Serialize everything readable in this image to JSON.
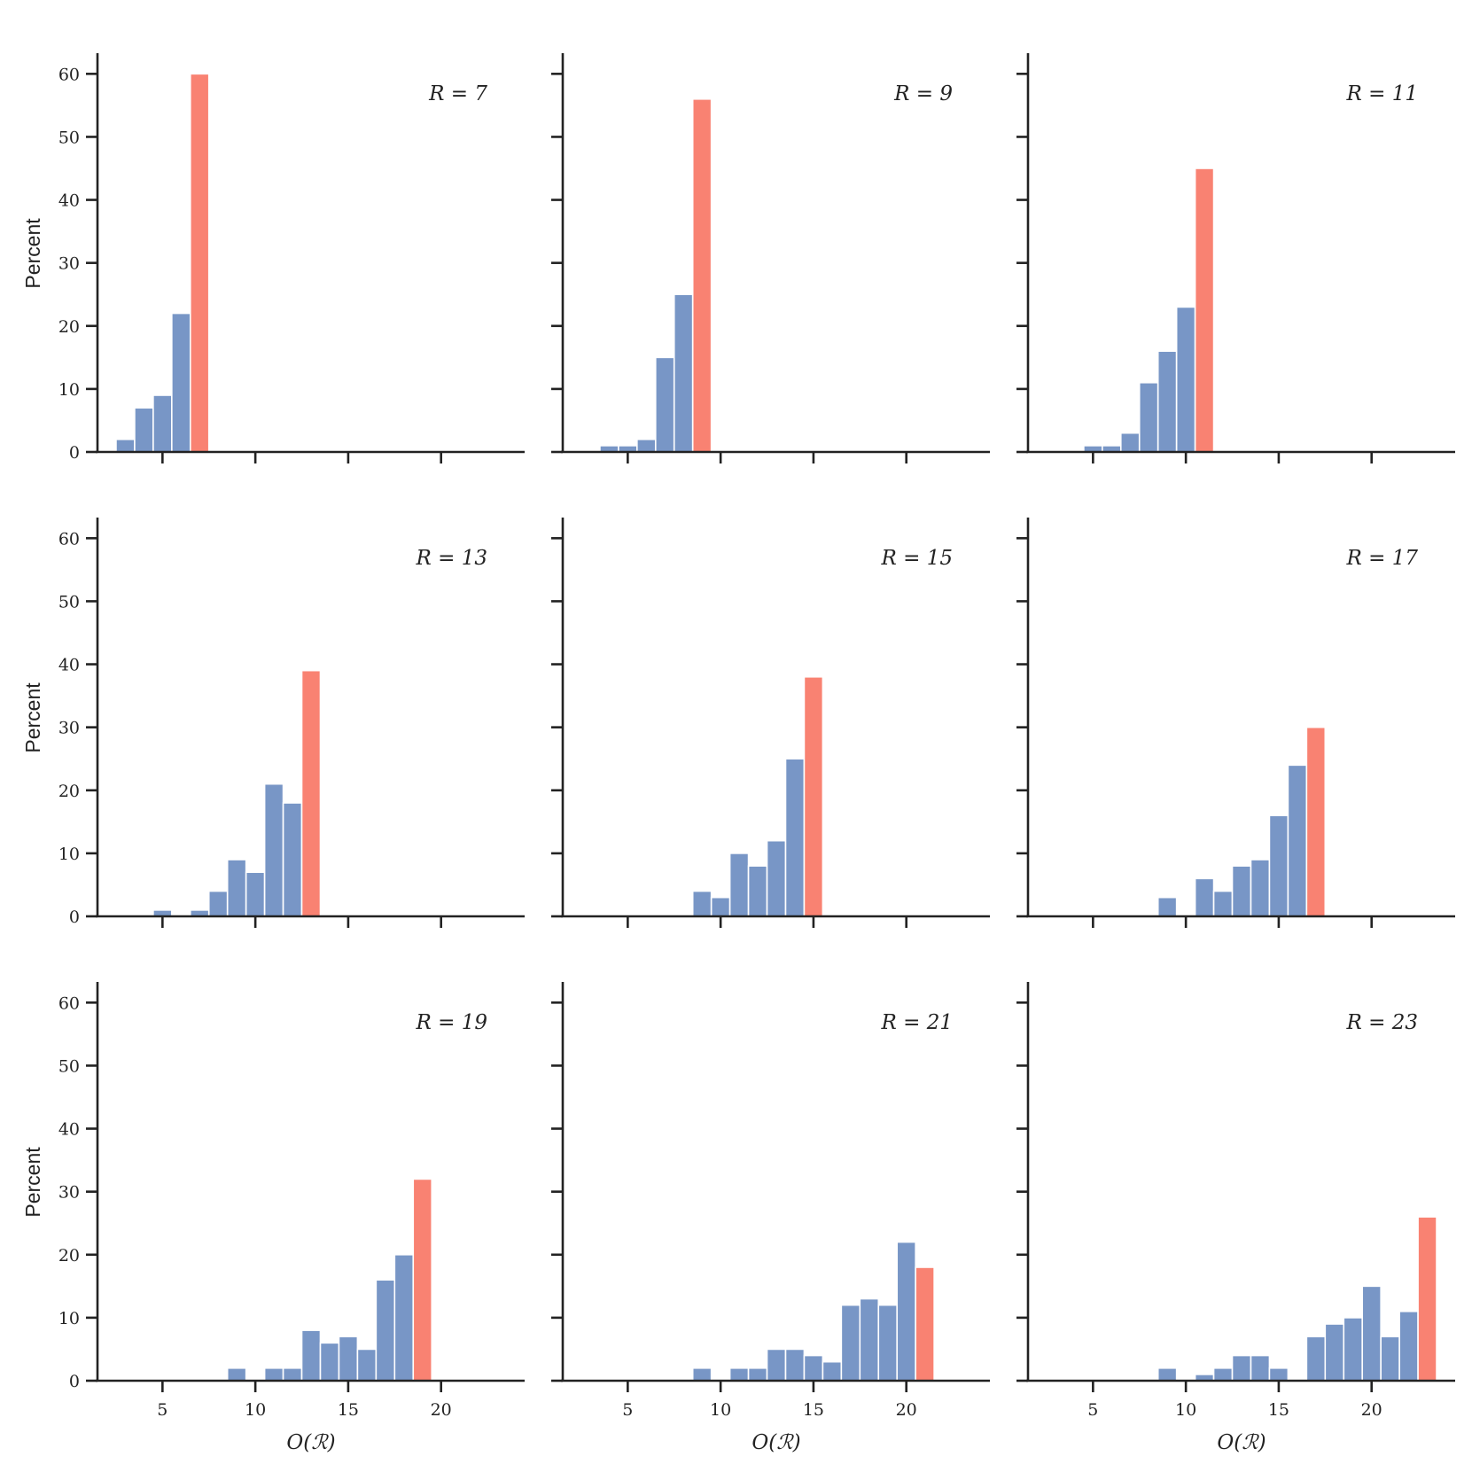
{
  "figure": {
    "ylabel": "Percent",
    "xlabel": "O(ℛ)",
    "colors": {
      "bar": "#7896c6",
      "highlight": "#f98272",
      "axis": "#222222"
    }
  },
  "chart_data": [
    {
      "type": "bar",
      "title": "R = 7",
      "xlim": [
        1.5,
        24.5
      ],
      "ylim": [
        0,
        63
      ],
      "yticks": [
        0,
        10,
        20,
        30,
        40,
        50,
        60
      ],
      "xticks": [
        5,
        10,
        15,
        20
      ],
      "x": [
        3,
        4,
        5,
        6,
        7
      ],
      "values": [
        2,
        7,
        9,
        22,
        60
      ],
      "highlight_x": 7,
      "xlabel": "",
      "ylabel": "Percent",
      "show_xticklabels": false,
      "show_yticklabels": true
    },
    {
      "type": "bar",
      "title": "R = 9",
      "xlim": [
        1.5,
        24.5
      ],
      "ylim": [
        0,
        63
      ],
      "yticks": [
        0,
        10,
        20,
        30,
        40,
        50,
        60
      ],
      "xticks": [
        5,
        10,
        15,
        20
      ],
      "x": [
        4,
        5,
        6,
        7,
        8,
        9
      ],
      "values": [
        1,
        1,
        2,
        15,
        25,
        56
      ],
      "highlight_x": 9,
      "xlabel": "",
      "ylabel": "",
      "show_xticklabels": false,
      "show_yticklabels": false
    },
    {
      "type": "bar",
      "title": "R = 11",
      "xlim": [
        1.5,
        24.5
      ],
      "ylim": [
        0,
        63
      ],
      "yticks": [
        0,
        10,
        20,
        30,
        40,
        50,
        60
      ],
      "xticks": [
        5,
        10,
        15,
        20
      ],
      "x": [
        5,
        6,
        7,
        8,
        9,
        10,
        11
      ],
      "values": [
        1,
        1,
        3,
        11,
        16,
        23,
        45
      ],
      "highlight_x": 11,
      "xlabel": "",
      "ylabel": "",
      "show_xticklabels": false,
      "show_yticklabels": false
    },
    {
      "type": "bar",
      "title": "R = 13",
      "xlim": [
        1.5,
        24.5
      ],
      "ylim": [
        0,
        63
      ],
      "yticks": [
        0,
        10,
        20,
        30,
        40,
        50,
        60
      ],
      "xticks": [
        5,
        10,
        15,
        20
      ],
      "x": [
        5,
        7,
        8,
        9,
        10,
        11,
        12,
        13
      ],
      "values": [
        1,
        1,
        4,
        9,
        7,
        21,
        18,
        39
      ],
      "highlight_x": 13,
      "xlabel": "",
      "ylabel": "Percent",
      "show_xticklabels": false,
      "show_yticklabels": true
    },
    {
      "type": "bar",
      "title": "R = 15",
      "xlim": [
        1.5,
        24.5
      ],
      "ylim": [
        0,
        63
      ],
      "yticks": [
        0,
        10,
        20,
        30,
        40,
        50,
        60
      ],
      "xticks": [
        5,
        10,
        15,
        20
      ],
      "x": [
        9,
        10,
        11,
        12,
        13,
        14,
        15
      ],
      "values": [
        4,
        3,
        10,
        8,
        12,
        25,
        38
      ],
      "highlight_x": 15,
      "xlabel": "",
      "ylabel": "",
      "show_xticklabels": false,
      "show_yticklabels": false
    },
    {
      "type": "bar",
      "title": "R = 17",
      "xlim": [
        1.5,
        24.5
      ],
      "ylim": [
        0,
        63
      ],
      "yticks": [
        0,
        10,
        20,
        30,
        40,
        50,
        60
      ],
      "xticks": [
        5,
        10,
        15,
        20
      ],
      "x": [
        9,
        11,
        12,
        13,
        14,
        15,
        16,
        17
      ],
      "values": [
        3,
        6,
        4,
        8,
        9,
        16,
        24,
        30
      ],
      "highlight_x": 17,
      "xlabel": "",
      "ylabel": "",
      "show_xticklabels": false,
      "show_yticklabels": false
    },
    {
      "type": "bar",
      "title": "R = 19",
      "xlim": [
        1.5,
        24.5
      ],
      "ylim": [
        0,
        63
      ],
      "yticks": [
        0,
        10,
        20,
        30,
        40,
        50,
        60
      ],
      "xticks": [
        5,
        10,
        15,
        20
      ],
      "x": [
        9,
        11,
        12,
        13,
        14,
        15,
        16,
        17,
        18,
        19
      ],
      "values": [
        2,
        2,
        2,
        8,
        6,
        7,
        5,
        16,
        20,
        32
      ],
      "highlight_x": 19,
      "xlabel": "O(ℛ)",
      "ylabel": "Percent",
      "show_xticklabels": true,
      "show_yticklabels": true
    },
    {
      "type": "bar",
      "title": "R = 21",
      "xlim": [
        1.5,
        24.5
      ],
      "ylim": [
        0,
        63
      ],
      "yticks": [
        0,
        10,
        20,
        30,
        40,
        50,
        60
      ],
      "xticks": [
        5,
        10,
        15,
        20
      ],
      "x": [
        9,
        11,
        12,
        13,
        14,
        15,
        16,
        17,
        18,
        19,
        20,
        21
      ],
      "values": [
        2,
        2,
        2,
        5,
        5,
        4,
        3,
        12,
        13,
        12,
        22,
        18
      ],
      "highlight_x": 21,
      "xlabel": "O(ℛ)",
      "ylabel": "",
      "show_xticklabels": true,
      "show_yticklabels": false
    },
    {
      "type": "bar",
      "title": "R = 23",
      "xlim": [
        1.5,
        24.5
      ],
      "ylim": [
        0,
        63
      ],
      "yticks": [
        0,
        10,
        20,
        30,
        40,
        50,
        60
      ],
      "xticks": [
        5,
        10,
        15,
        20
      ],
      "x": [
        9,
        11,
        12,
        13,
        14,
        15,
        17,
        18,
        19,
        20,
        21,
        22,
        23
      ],
      "values": [
        2,
        1,
        2,
        4,
        4,
        2,
        7,
        9,
        10,
        15,
        7,
        11,
        26
      ],
      "highlight_x": 23,
      "xlabel": "O(ℛ)",
      "ylabel": "",
      "show_xticklabels": true,
      "show_yticklabels": false
    }
  ]
}
